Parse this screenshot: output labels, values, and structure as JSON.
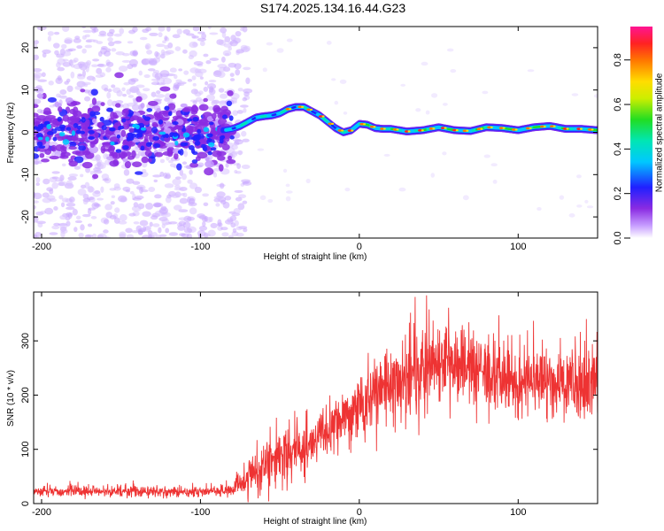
{
  "title": "S174.2025.134.16.44.G23",
  "chart_data": [
    {
      "type": "heatmap",
      "xlabel": "Height of straight line (km)",
      "ylabel": "Frequency (Hz)",
      "xlim": [
        -205,
        150
      ],
      "ylim": [
        -25,
        25
      ],
      "xticks": [
        -200,
        -100,
        0,
        100
      ],
      "yticks": [
        -20,
        -10,
        0,
        10,
        20
      ],
      "ridge": {
        "x": [
          -85,
          -80,
          -75,
          -70,
          -65,
          -60,
          -55,
          -50,
          -45,
          -40,
          -35,
          -30,
          -25,
          -20,
          -15,
          -10,
          -5,
          0,
          5,
          10,
          15,
          20,
          30,
          40,
          50,
          60,
          70,
          80,
          90,
          100,
          110,
          120,
          130,
          140,
          150
        ],
        "y": [
          0.5,
          0.8,
          1.5,
          2.5,
          3.5,
          3.8,
          4.0,
          4.5,
          5.5,
          6.0,
          6.0,
          5.0,
          4.0,
          2.5,
          1.0,
          0.0,
          0.5,
          2.0,
          1.8,
          1.0,
          0.8,
          0.8,
          0.2,
          0.5,
          1.2,
          0.5,
          0.3,
          1.2,
          1.0,
          0.5,
          1.2,
          1.5,
          0.8,
          0.8,
          0.5
        ]
      },
      "colorbar": {
        "label": "Normalized spectral amplitude",
        "range": [
          0,
          0.95
        ],
        "ticks": [
          0.0,
          0.2,
          0.4,
          0.6,
          0.8
        ],
        "tick_labels": [
          "0.0",
          "0.2",
          "0.4",
          "0.6",
          "0.8"
        ]
      }
    },
    {
      "type": "line",
      "xlabel": "Height of straight line (km)",
      "ylabel": "SNR (10 * v/v)",
      "xlim": [
        -205,
        150
      ],
      "ylim": [
        0,
        390
      ],
      "xticks": [
        -200,
        -100,
        0,
        100
      ],
      "yticks": [
        0,
        100,
        200,
        300
      ],
      "color": "#ee3333",
      "trend": {
        "x": [
          -205,
          -90,
          -80,
          -70,
          -60,
          -50,
          -40,
          -30,
          -20,
          -10,
          0,
          10,
          20,
          30,
          40,
          50,
          60,
          70,
          80,
          90,
          100,
          110,
          120,
          130,
          140,
          150
        ],
        "mean": [
          22,
          22,
          25,
          45,
          70,
          85,
          95,
          110,
          130,
          150,
          175,
          200,
          215,
          230,
          245,
          250,
          245,
          240,
          235,
          230,
          225,
          225,
          220,
          225,
          220,
          215
        ],
        "spread": [
          9,
          9,
          11,
          30,
          45,
          45,
          40,
          40,
          40,
          45,
          50,
          55,
          60,
          65,
          70,
          70,
          70,
          65,
          65,
          60,
          60,
          60,
          60,
          60,
          60,
          60
        ]
      }
    }
  ]
}
